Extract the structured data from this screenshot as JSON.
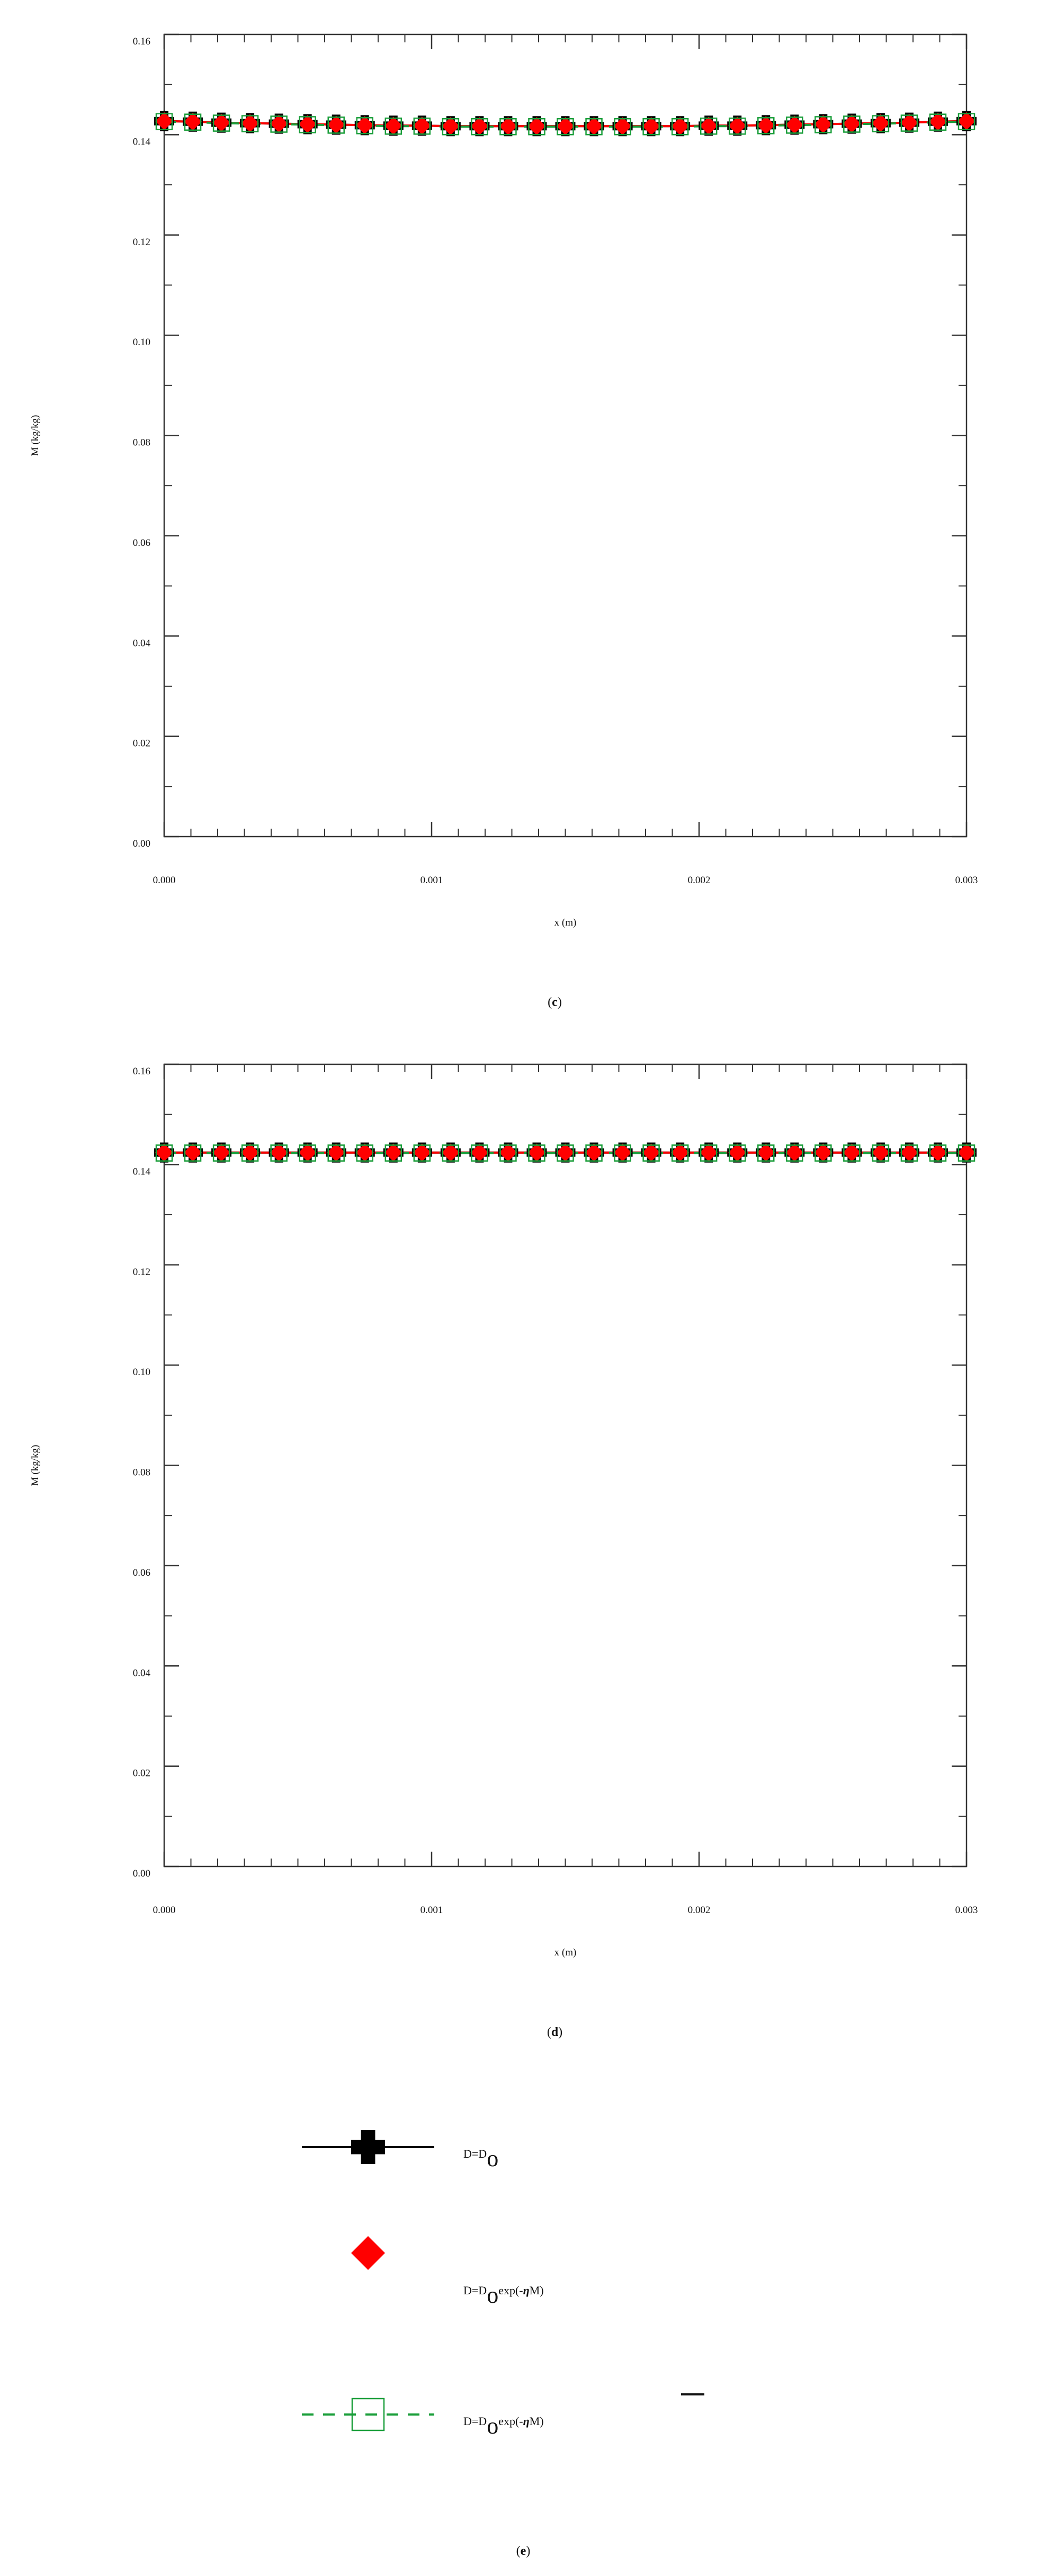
{
  "chart_data": [
    {
      "type": "line",
      "panel_label": "c",
      "panel_label_open": "(",
      "panel_label_close": ")",
      "xlabel": "x (m)",
      "ylabel": "M (kg/kg)",
      "xlim": [
        0,
        0.003
      ],
      "ylim": [
        0,
        0.16
      ],
      "xticks": [
        "0.000",
        "0.001",
        "0.002",
        "0.003"
      ],
      "yticks": [
        "0.00",
        "0.02",
        "0.04",
        "0.06",
        "0.08",
        "0.10",
        "0.12",
        "0.14",
        "0.16"
      ],
      "x": [
        0,
        0.000107,
        0.000214,
        0.000321,
        0.000429,
        0.000536,
        0.000643,
        0.00075,
        0.000857,
        0.000964,
        0.001071,
        0.001179,
        0.001286,
        0.001393,
        0.0015,
        0.001607,
        0.001714,
        0.001821,
        0.001929,
        0.002036,
        0.002143,
        0.00225,
        0.002357,
        0.002464,
        0.002571,
        0.002679,
        0.002786,
        0.002893,
        0.003
      ],
      "series": [
        {
          "name": "D=Do",
          "color": "#000000",
          "marker": "plus",
          "y": [
            0.1427,
            0.1426,
            0.1424,
            0.1423,
            0.1422,
            0.1421,
            0.142,
            0.1419,
            0.1418,
            0.1418,
            0.1417,
            0.1417,
            0.1417,
            0.1417,
            0.1417,
            0.1417,
            0.1417,
            0.1417,
            0.1417,
            0.1418,
            0.1418,
            0.1419,
            0.142,
            0.1421,
            0.1422,
            0.1423,
            0.1424,
            0.1426,
            0.1427
          ]
        },
        {
          "name": "D=Doexp(-ηM)",
          "color": "#ff0000",
          "marker": "diamond",
          "y": [
            0.1427,
            0.1426,
            0.1424,
            0.1423,
            0.1422,
            0.1421,
            0.142,
            0.1419,
            0.1418,
            0.1418,
            0.1417,
            0.1417,
            0.1417,
            0.1417,
            0.1417,
            0.1417,
            0.1417,
            0.1417,
            0.1417,
            0.1418,
            0.1418,
            0.1419,
            0.142,
            0.1421,
            0.1422,
            0.1423,
            0.1424,
            0.1426,
            0.1427
          ]
        },
        {
          "name": "D=Doexp(-ηM̄)",
          "color": "#1a9e3a",
          "marker": "square",
          "y": [
            0.1426,
            0.1425,
            0.1423,
            0.1422,
            0.1421,
            0.142,
            0.1419,
            0.1418,
            0.1417,
            0.1417,
            0.1416,
            0.1416,
            0.1416,
            0.1416,
            0.1416,
            0.1416,
            0.1416,
            0.1416,
            0.1416,
            0.1417,
            0.1417,
            0.1418,
            0.1419,
            0.142,
            0.1421,
            0.1422,
            0.1423,
            0.1425,
            0.1426
          ]
        }
      ]
    },
    {
      "type": "line",
      "panel_label": "d",
      "panel_label_open": "(",
      "panel_label_close": ")",
      "xlabel": "x (m)",
      "ylabel": "M (kg/kg)",
      "xlim": [
        0,
        0.003
      ],
      "ylim": [
        0,
        0.16
      ],
      "xticks": [
        "0.000",
        "0.001",
        "0.002",
        "0.003"
      ],
      "yticks": [
        "0.00",
        "0.02",
        "0.04",
        "0.06",
        "0.08",
        "0.10",
        "0.12",
        "0.14",
        "0.16"
      ],
      "x": [
        0,
        0.000107,
        0.000214,
        0.000321,
        0.000429,
        0.000536,
        0.000643,
        0.00075,
        0.000857,
        0.000964,
        0.001071,
        0.001179,
        0.001286,
        0.001393,
        0.0015,
        0.001607,
        0.001714,
        0.001821,
        0.001929,
        0.002036,
        0.002143,
        0.00225,
        0.002357,
        0.002464,
        0.002571,
        0.002679,
        0.002786,
        0.002893,
        0.003
      ],
      "series": [
        {
          "name": "D=Do",
          "color": "#000000",
          "marker": "plus",
          "y": [
            0.1424,
            0.1424,
            0.1424,
            0.1424,
            0.1424,
            0.1424,
            0.1424,
            0.1424,
            0.1424,
            0.1424,
            0.1424,
            0.1424,
            0.1424,
            0.1424,
            0.1424,
            0.1424,
            0.1424,
            0.1424,
            0.1424,
            0.1424,
            0.1424,
            0.1424,
            0.1424,
            0.1424,
            0.1424,
            0.1424,
            0.1424,
            0.1424,
            0.1424
          ]
        },
        {
          "name": "D=Doexp(-ηM)",
          "color": "#ff0000",
          "marker": "diamond",
          "y": [
            0.1424,
            0.1424,
            0.1424,
            0.1424,
            0.1424,
            0.1424,
            0.1424,
            0.1424,
            0.1424,
            0.1424,
            0.1424,
            0.1424,
            0.1424,
            0.1424,
            0.1424,
            0.1424,
            0.1424,
            0.1424,
            0.1424,
            0.1424,
            0.1424,
            0.1424,
            0.1424,
            0.1424,
            0.1424,
            0.1424,
            0.1424,
            0.1424,
            0.1424
          ]
        },
        {
          "name": "D=Doexp(-ηM̄)",
          "color": "#1a9e3a",
          "marker": "square",
          "y": [
            0.1423,
            0.1423,
            0.1423,
            0.1423,
            0.1423,
            0.1423,
            0.1423,
            0.1423,
            0.1423,
            0.1423,
            0.1423,
            0.1423,
            0.1423,
            0.1423,
            0.1423,
            0.1423,
            0.1423,
            0.1423,
            0.1423,
            0.1423,
            0.1423,
            0.1423,
            0.1423,
            0.1423,
            0.1423,
            0.1423,
            0.1423,
            0.1423,
            0.1423
          ]
        }
      ]
    }
  ],
  "legend": {
    "panel_label": "e",
    "panel_label_open": "(",
    "panel_label_close": ")",
    "entries": [
      {
        "marker": "plus",
        "color": "#000000",
        "line": "solid",
        "text_main": "D=D",
        "text_sub": "o",
        "text_rest": ""
      },
      {
        "marker": "diamond",
        "color": "#ff0000",
        "line": "none",
        "text_main": "D=D",
        "text_sub": "o",
        "text_rest": "exp(-",
        "eta": "η",
        "tail": "M)"
      },
      {
        "marker": "square",
        "color": "#1a9e3a",
        "line": "dashed",
        "text_main": "D=D",
        "text_sub": "o",
        "text_rest": "exp(-",
        "eta": "η",
        "tail": "M)",
        "overbar": true
      }
    ]
  }
}
